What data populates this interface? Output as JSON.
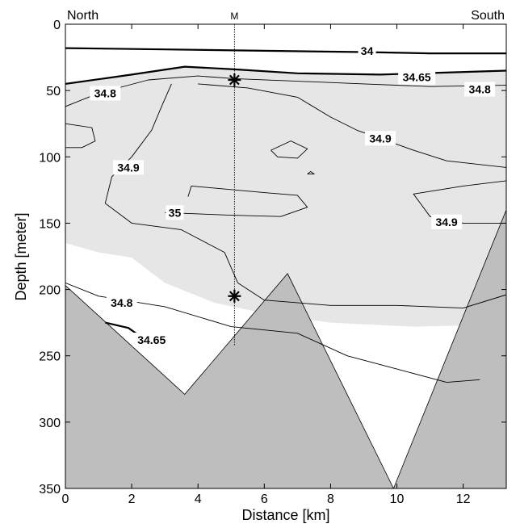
{
  "chart_data": {
    "type": "contour",
    "xlabel": "Distance [km]",
    "ylabel": "Depth [meter]",
    "xlim": [
      0,
      13.3
    ],
    "ylim": [
      0,
      350
    ],
    "y_reversed": true,
    "xticks": [
      0,
      2,
      4,
      6,
      8,
      10,
      12
    ],
    "yticks": [
      0,
      50,
      100,
      150,
      200,
      250,
      300,
      350
    ],
    "corner_labels": {
      "left": "North",
      "right": "South"
    },
    "station": {
      "label": "M",
      "x": 5.1,
      "samples": [
        {
          "x": 5.1,
          "depth": 42
        },
        {
          "x": 5.1,
          "depth": 205
        }
      ]
    },
    "fills": {
      "water_mass_color": "#e6e6e6",
      "bottom_color": "#bebebe"
    },
    "bottom_profile": [
      {
        "x": 0,
        "depth": 197
      },
      {
        "x": 3.6,
        "depth": 279
      },
      {
        "x": 6.7,
        "depth": 188
      },
      {
        "x": 9.9,
        "depth": 350
      },
      {
        "x": 13.3,
        "depth": 140
      }
    ],
    "shaded_region": [
      {
        "x": 0,
        "depth": 45
      },
      {
        "x": 2,
        "depth": 38
      },
      {
        "x": 3.6,
        "depth": 32
      },
      {
        "x": 5.1,
        "depth": 34
      },
      {
        "x": 7,
        "depth": 37
      },
      {
        "x": 9.5,
        "depth": 38
      },
      {
        "x": 13.3,
        "depth": 35
      },
      {
        "x": 13.3,
        "depth": 140
      },
      {
        "x": 12.3,
        "depth": 227
      },
      {
        "x": 10.5,
        "depth": 228
      },
      {
        "x": 8,
        "depth": 225
      },
      {
        "x": 6,
        "depth": 218
      },
      {
        "x": 4.5,
        "depth": 210
      },
      {
        "x": 3,
        "depth": 195
      },
      {
        "x": 2,
        "depth": 176
      },
      {
        "x": 1,
        "depth": 172
      },
      {
        "x": 0,
        "depth": 165
      }
    ],
    "contours": [
      {
        "level": "34",
        "style": "thick",
        "points": [
          {
            "x": 0,
            "depth": 18
          },
          {
            "x": 3,
            "depth": 19
          },
          {
            "x": 6,
            "depth": 20
          },
          {
            "x": 9,
            "depth": 21
          },
          {
            "x": 11,
            "depth": 22
          },
          {
            "x": 13.3,
            "depth": 22
          }
        ]
      },
      {
        "level": "34.65",
        "style": "thick",
        "points": [
          {
            "x": 0,
            "depth": 45
          },
          {
            "x": 2,
            "depth": 38
          },
          {
            "x": 3.6,
            "depth": 32
          },
          {
            "x": 5.1,
            "depth": 34
          },
          {
            "x": 7,
            "depth": 37
          },
          {
            "x": 9.5,
            "depth": 38
          },
          {
            "x": 13.3,
            "depth": 35
          }
        ]
      },
      {
        "level": "34.8",
        "style": "thin",
        "points": [
          {
            "x": 0,
            "depth": 62
          },
          {
            "x": 1,
            "depth": 52
          },
          {
            "x": 2.5,
            "depth": 42
          },
          {
            "x": 4,
            "depth": 39
          },
          {
            "x": 5.1,
            "depth": 41
          },
          {
            "x": 7,
            "depth": 43
          },
          {
            "x": 9,
            "depth": 45
          },
          {
            "x": 11,
            "depth": 47
          },
          {
            "x": 13.3,
            "depth": 46
          }
        ]
      },
      {
        "level": "34.9",
        "style": "thin",
        "points": [
          {
            "x": 4,
            "depth": 45
          },
          {
            "x": 5.5,
            "depth": 48
          },
          {
            "x": 7,
            "depth": 55
          },
          {
            "x": 8,
            "depth": 70
          },
          {
            "x": 8.8,
            "depth": 80
          },
          {
            "x": 9.5,
            "depth": 86
          },
          {
            "x": 10.5,
            "depth": 95
          },
          {
            "x": 11.5,
            "depth": 103
          },
          {
            "x": 13.3,
            "depth": 108
          }
        ]
      },
      {
        "level": "34.9",
        "style": "thin",
        "points": [
          {
            "x": 3.2,
            "depth": 45
          },
          {
            "x": 2.9,
            "depth": 62
          },
          {
            "x": 2.6,
            "depth": 80
          },
          {
            "x": 2,
            "depth": 100
          },
          {
            "x": 1.4,
            "depth": 115
          },
          {
            "x": 1.2,
            "depth": 135
          },
          {
            "x": 2,
            "depth": 150
          },
          {
            "x": 3.5,
            "depth": 155
          },
          {
            "x": 4.8,
            "depth": 172
          },
          {
            "x": 5.2,
            "depth": 195
          },
          {
            "x": 6,
            "depth": 208
          },
          {
            "x": 8,
            "depth": 212
          },
          {
            "x": 10,
            "depth": 212
          },
          {
            "x": 12,
            "depth": 214
          },
          {
            "x": 13.3,
            "depth": 204
          }
        ]
      },
      {
        "level": "35",
        "style": "thin",
        "points": [
          {
            "x": 3,
            "depth": 142
          },
          {
            "x": 5,
            "depth": 144
          },
          {
            "x": 6.5,
            "depth": 145
          }
        ]
      },
      {
        "level": "35",
        "style": "thin",
        "points": [
          {
            "x": 3.7,
            "depth": 130
          },
          {
            "x": 3.8,
            "depth": 122
          },
          {
            "x": 6,
            "depth": 127
          },
          {
            "x": 7,
            "depth": 129
          },
          {
            "x": 7.3,
            "depth": 138
          },
          {
            "x": 6.5,
            "depth": 145
          }
        ]
      },
      {
        "level": "34.9",
        "style": "thin",
        "points": [
          {
            "x": 13.3,
            "depth": 118
          },
          {
            "x": 12,
            "depth": 122
          },
          {
            "x": 10.5,
            "depth": 128
          },
          {
            "x": 11,
            "depth": 145
          },
          {
            "x": 12,
            "depth": 150
          },
          {
            "x": 13.3,
            "depth": 150
          }
        ]
      },
      {
        "level": "34.8",
        "style": "thin",
        "points": [
          {
            "x": 0,
            "depth": 195
          },
          {
            "x": 1,
            "depth": 205
          },
          {
            "x": 3,
            "depth": 213
          },
          {
            "x": 5,
            "depth": 228
          },
          {
            "x": 7,
            "depth": 233
          },
          {
            "x": 8.5,
            "depth": 250
          },
          {
            "x": 10,
            "depth": 260
          },
          {
            "x": 11.5,
            "depth": 270
          },
          {
            "x": 12.5,
            "depth": 268
          }
        ]
      },
      {
        "level": "34.65",
        "style": "thick",
        "points": [
          {
            "x": 1.2,
            "depth": 225
          },
          {
            "x": 1.9,
            "depth": 229
          },
          {
            "x": 2.3,
            "depth": 236
          }
        ]
      }
    ],
    "extra_loops": [
      {
        "points": [
          {
            "x": 0,
            "depth": 75
          },
          {
            "x": 0.8,
            "depth": 78
          },
          {
            "x": 0.9,
            "depth": 88
          },
          {
            "x": 0.5,
            "depth": 93
          },
          {
            "x": 0,
            "depth": 93
          }
        ]
      },
      {
        "points": [
          {
            "x": 6.2,
            "depth": 95
          },
          {
            "x": 6.8,
            "depth": 88
          },
          {
            "x": 7.3,
            "depth": 94
          },
          {
            "x": 7,
            "depth": 101
          },
          {
            "x": 6.4,
            "depth": 100
          },
          {
            "x": 6.2,
            "depth": 95
          }
        ]
      },
      {
        "points": [
          {
            "x": 7.3,
            "depth": 113
          },
          {
            "x": 7.4,
            "depth": 111
          },
          {
            "x": 7.5,
            "depth": 113
          },
          {
            "x": 7.3,
            "depth": 113
          }
        ]
      }
    ],
    "contour_labels": [
      {
        "text": "34",
        "x": 9.1,
        "depth": 20
      },
      {
        "text": "34.65",
        "x": 10.6,
        "depth": 40
      },
      {
        "text": "34.8",
        "x": 1.2,
        "depth": 52
      },
      {
        "text": "34.8",
        "x": 12.5,
        "depth": 49
      },
      {
        "text": "34.9",
        "x": 9.5,
        "depth": 86
      },
      {
        "text": "34.9",
        "x": 1.9,
        "depth": 108
      },
      {
        "text": "35",
        "x": 3.3,
        "depth": 142
      },
      {
        "text": "34.9",
        "x": 11.5,
        "depth": 149
      },
      {
        "text": "34.8",
        "x": 1.7,
        "depth": 210
      },
      {
        "text": "34.65",
        "x": 2.6,
        "depth": 238
      }
    ]
  }
}
